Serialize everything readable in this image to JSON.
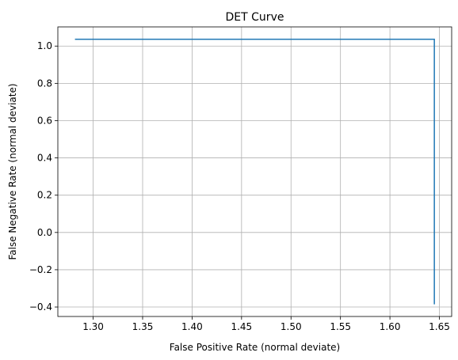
{
  "chart_data": {
    "type": "line",
    "title": "DET Curve",
    "xlabel": "False Positive Rate (normal deviate)",
    "ylabel": "False Negative Rate (normal deviate)",
    "xlim": [
      1.2643,
      1.6624
    ],
    "ylim": [
      -0.4508,
      1.1029
    ],
    "xticks": [
      1.3,
      1.35,
      1.4,
      1.45,
      1.5,
      1.55,
      1.6,
      1.65
    ],
    "xtick_labels": [
      "1.30",
      "1.35",
      "1.40",
      "1.45",
      "1.50",
      "1.55",
      "1.60",
      "1.65"
    ],
    "yticks": [
      -0.4,
      -0.2,
      0.0,
      0.2,
      0.4,
      0.6,
      0.8,
      1.0
    ],
    "ytick_labels": [
      "−0.4",
      "−0.2",
      "0.0",
      "0.2",
      "0.4",
      "0.6",
      "0.8",
      "1.0"
    ],
    "grid": true,
    "series": [
      {
        "color": "#1f77b4",
        "x": [
          1.2816,
          1.6449,
          1.6449
        ],
        "y": [
          1.0364,
          1.0364,
          -0.3853
        ]
      }
    ]
  }
}
